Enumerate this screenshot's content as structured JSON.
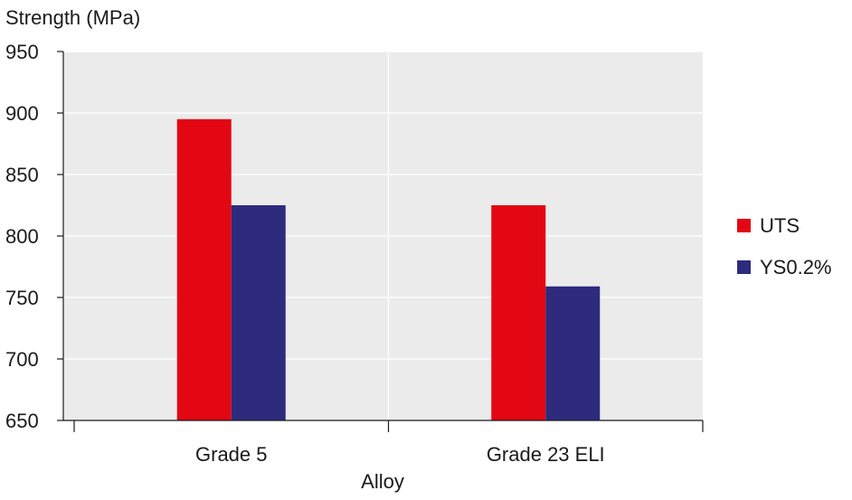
{
  "chart_data": {
    "type": "bar",
    "title": "",
    "ylabel": "Strength (MPa)",
    "xlabel": "Alloy",
    "categories": [
      "Grade 5",
      "Grade 23 ELI"
    ],
    "series": [
      {
        "name": "UTS",
        "color": "#e30613",
        "values": [
          895,
          825
        ]
      },
      {
        "name": "YS0.2%",
        "color": "#2e2a7e",
        "values": [
          825,
          759
        ]
      }
    ],
    "ylim": [
      650,
      950
    ],
    "yticks": [
      650,
      700,
      750,
      800,
      850,
      900,
      950
    ],
    "grid": true,
    "legend_position": "right",
    "plot_background": "#ebebeb",
    "gridline_color": "#ffffff"
  }
}
